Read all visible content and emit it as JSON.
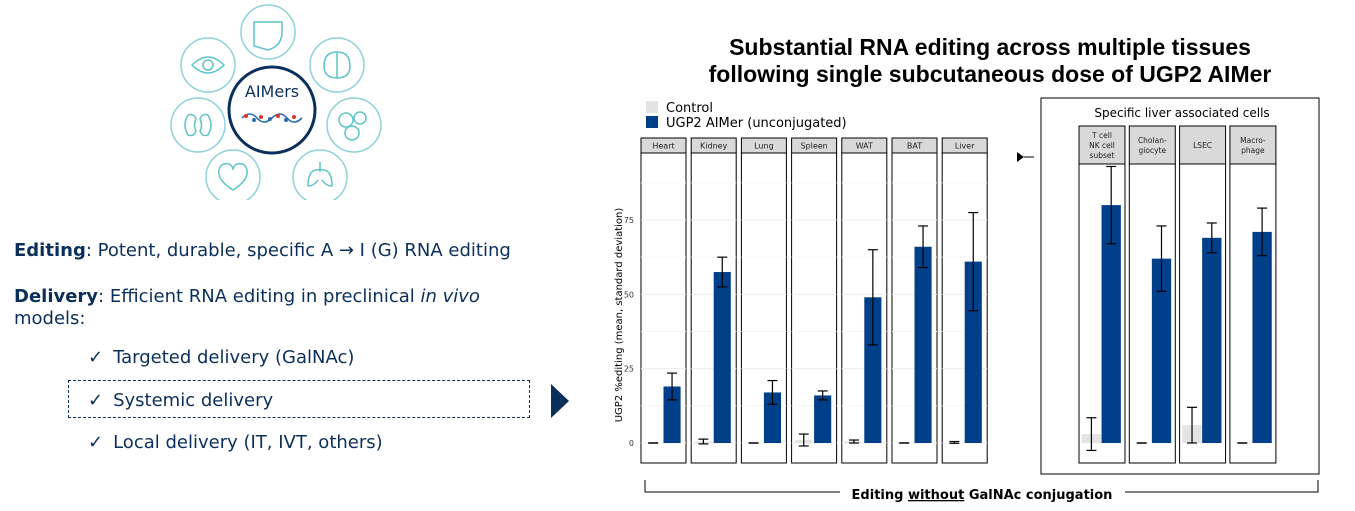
{
  "hub": {
    "center_label": "AIMers",
    "icons": [
      "liver-icon",
      "brain-icon",
      "cells-icon",
      "lungs-icon",
      "heart-icon",
      "kidney-icon",
      "eye-icon"
    ]
  },
  "left": {
    "editing_term": "Editing",
    "editing_text": ": Potent, durable, specific A → I (G) RNA editing",
    "delivery_term": "Delivery",
    "delivery_text_a": ": Efficient RNA editing in preclinical ",
    "delivery_text_italic": "in vivo",
    "delivery_text_b": "models:",
    "check_mark": "✓",
    "items": [
      "Targeted delivery (GalNAc)",
      "Systemic delivery",
      "Local delivery (IT, IVT, others)"
    ]
  },
  "colors": {
    "navy": "#0b2f5b",
    "aimer_bar": "#003f8a",
    "control_bar": "#e3e3e3"
  },
  "chart_data": {
    "type": "bar",
    "title_line1": "Substantial RNA editing across multiple tissues",
    "title_line2": "following single subcutaneous dose of UGP2 AIMer",
    "ylabel": "UGP2 %editing (mean, standard deviation)",
    "ylim": [
      0,
      100
    ],
    "yticks": [
      0,
      25,
      50,
      75
    ],
    "legend_placement": "top-left",
    "series": [
      {
        "name": "Control",
        "color": "#e3e3e3"
      },
      {
        "name": "UGP2 AIMer (unconjugated)",
        "color": "#003f8a"
      }
    ],
    "facets": [
      {
        "label": "Heart",
        "control": 0,
        "control_sd": 0,
        "aimer": 19,
        "aimer_sd": 4.5
      },
      {
        "label": "Kidney",
        "control": 0.5,
        "control_sd": 0.8,
        "aimer": 57.5,
        "aimer_sd": 5
      },
      {
        "label": "Lung",
        "control": 0,
        "control_sd": 0,
        "aimer": 17,
        "aimer_sd": 4
      },
      {
        "label": "Spleen",
        "control": 1,
        "control_sd": 2,
        "aimer": 16,
        "aimer_sd": 1.5
      },
      {
        "label": "WAT",
        "control": 0.5,
        "control_sd": 0.5,
        "aimer": 49,
        "aimer_sd": 16
      },
      {
        "label": "BAT",
        "control": 0,
        "control_sd": 0,
        "aimer": 66,
        "aimer_sd": 7
      },
      {
        "label": "Liver",
        "control": 0.2,
        "control_sd": 0.3,
        "aimer": 61,
        "aimer_sd": 16.5
      }
    ],
    "liver_cells_title": "Specific liver associated cells",
    "liver_cells": [
      {
        "label": [
          "T cell",
          "NK cell",
          "subset"
        ],
        "control": 3,
        "control_sd": 5.5,
        "aimer": 80,
        "aimer_sd": 13
      },
      {
        "label": [
          "Cholan-",
          "giocyte"
        ],
        "control": 0,
        "control_sd": 0,
        "aimer": 62,
        "aimer_sd": 11
      },
      {
        "label": [
          "LSEC"
        ],
        "control": 6,
        "control_sd": 6,
        "aimer": 69,
        "aimer_sd": 5
      },
      {
        "label": [
          "Macro-",
          "phage"
        ],
        "control": 0,
        "control_sd": 0,
        "aimer": 71,
        "aimer_sd": 8
      }
    ],
    "footer_a": "Editing ",
    "footer_b": "without",
    "footer_c": " GalNAc conjugation"
  }
}
